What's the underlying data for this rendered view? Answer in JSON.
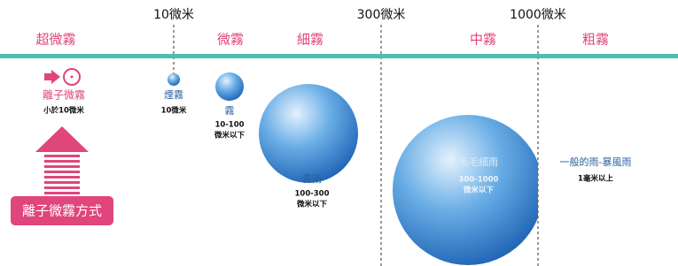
{
  "scale": {
    "ticks": [
      "10微米",
      "300微米",
      "1000微米"
    ]
  },
  "bands": [
    "超微霧",
    "微霧",
    "細霧",
    "中霧",
    "粗霧"
  ],
  "ion": {
    "label": "離子微霧",
    "size": "小於10微米",
    "button": "離子微霧方式"
  },
  "droplets": [
    {
      "label": "煙霧",
      "size": [
        "10微米"
      ]
    },
    {
      "label": "霧",
      "size": [
        "10-100",
        "微米以下"
      ]
    },
    {
      "label": "霧雨",
      "size": [
        "100-300",
        "微米以下"
      ]
    },
    {
      "label": "毛毛細雨",
      "size": [
        "300-1000",
        "微米以下"
      ]
    },
    {
      "label": "一般的雨-暴風雨",
      "size": [
        "1毫米以上"
      ]
    }
  ]
}
